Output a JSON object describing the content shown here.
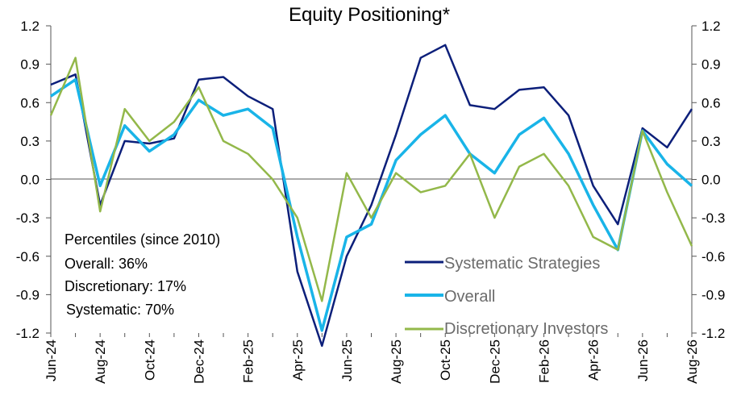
{
  "chart_data": {
    "type": "line",
    "title": "Equity Positioning*",
    "ylim": [
      -1.2,
      1.2
    ],
    "yticks": [
      -1.2,
      -0.9,
      -0.6,
      -0.3,
      0.0,
      0.3,
      0.6,
      0.9,
      1.2
    ],
    "ytick_labels": [
      "-1.2",
      "-0.9",
      "-0.6",
      "-0.3",
      "0.0",
      "0.3",
      "0.6",
      "0.9",
      "1.2"
    ],
    "x_range": [
      "2024-06",
      "2026-08"
    ],
    "xtick_labels": [
      "Jun-24",
      "Aug-24",
      "Oct-24",
      "Dec-24",
      "Feb-25",
      "Apr-25",
      "Jun-25",
      "Aug-25",
      "Oct-25",
      "Dec-25",
      "Feb-26",
      "Apr-26",
      "Jun-26",
      "Aug-26"
    ],
    "secondary_axis": "mirror",
    "grid": false,
    "legend_position": "bottom-right",
    "series": [
      {
        "name": "Systematic Strategies",
        "color": "#0c1f7a",
        "x": [
          "2024-06",
          "2024-07",
          "2024-08",
          "2024-09",
          "2024-10",
          "2024-11",
          "2024-12",
          "2025-01",
          "2025-02",
          "2025-03",
          "2025-04",
          "2025-05",
          "2025-06",
          "2025-07",
          "2025-08",
          "2025-09",
          "2025-10",
          "2025-11",
          "2025-12",
          "2026-01",
          "2026-02",
          "2026-03",
          "2026-04",
          "2026-05",
          "2026-06",
          "2026-07",
          "2026-08"
        ],
        "values": [
          0.74,
          0.82,
          -0.2,
          0.3,
          0.28,
          0.32,
          0.78,
          0.8,
          0.65,
          0.55,
          -0.72,
          -1.3,
          -0.6,
          -0.2,
          0.35,
          0.95,
          1.05,
          0.58,
          0.55,
          0.7,
          0.72,
          0.5,
          -0.05,
          -0.35,
          0.4,
          0.25,
          0.55
        ]
      },
      {
        "name": "Overall",
        "color": "#19b4e8",
        "x": [
          "2024-06",
          "2024-07",
          "2024-08",
          "2024-09",
          "2024-10",
          "2024-11",
          "2024-12",
          "2025-01",
          "2025-02",
          "2025-03",
          "2025-04",
          "2025-05",
          "2025-06",
          "2025-07",
          "2025-08",
          "2025-09",
          "2025-10",
          "2025-11",
          "2025-12",
          "2026-01",
          "2026-02",
          "2026-03",
          "2026-04",
          "2026-05",
          "2026-06",
          "2026-07",
          "2026-08"
        ],
        "values": [
          0.65,
          0.78,
          -0.05,
          0.42,
          0.22,
          0.35,
          0.62,
          0.5,
          0.55,
          0.4,
          -0.45,
          -1.18,
          -0.45,
          -0.35,
          0.15,
          0.35,
          0.5,
          0.2,
          0.05,
          0.35,
          0.48,
          0.2,
          -0.2,
          -0.55,
          0.38,
          0.12,
          -0.05
        ]
      },
      {
        "name": "Discretionary Investors",
        "color": "#93b84a",
        "x": [
          "2024-06",
          "2024-07",
          "2024-08",
          "2024-09",
          "2024-10",
          "2024-11",
          "2024-12",
          "2025-01",
          "2025-02",
          "2025-03",
          "2025-04",
          "2025-05",
          "2025-06",
          "2025-07",
          "2025-08",
          "2025-09",
          "2025-10",
          "2025-11",
          "2025-12",
          "2026-01",
          "2026-02",
          "2026-03",
          "2026-04",
          "2026-05",
          "2026-06",
          "2026-07",
          "2026-08"
        ],
        "values": [
          0.5,
          0.95,
          -0.25,
          0.55,
          0.3,
          0.45,
          0.72,
          0.3,
          0.2,
          0.0,
          -0.3,
          -0.95,
          0.05,
          -0.3,
          0.05,
          -0.1,
          -0.05,
          0.2,
          -0.3,
          0.1,
          0.2,
          -0.05,
          -0.45,
          -0.55,
          0.38,
          -0.1,
          -0.52
        ]
      }
    ],
    "annotations": [
      "Percentiles (since 2010)",
      "Overall: 36%",
      "Discretionary: 17%",
      "Systematic: 70%"
    ]
  }
}
